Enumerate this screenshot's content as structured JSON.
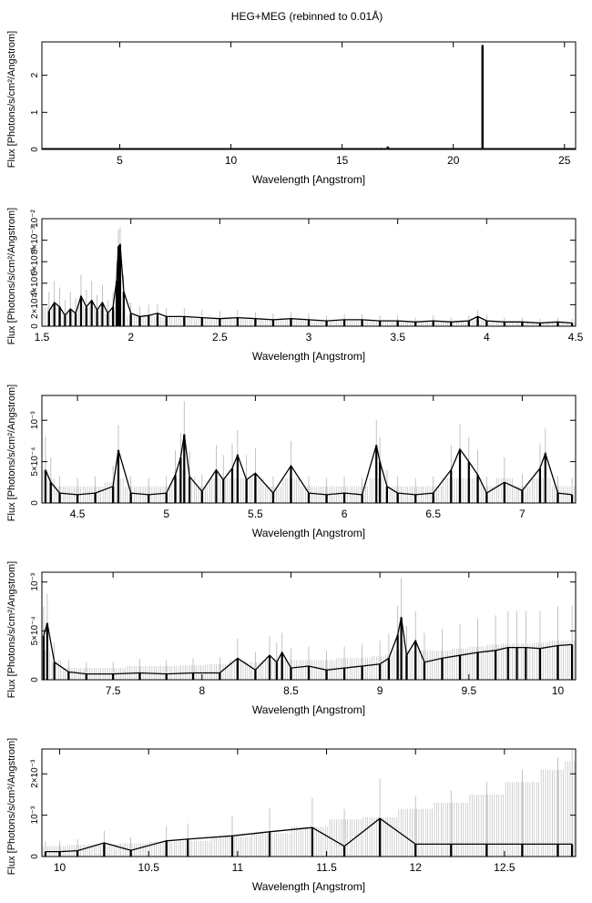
{
  "figure": {
    "title": "HEG+MEG (rebinned to 0.01Å)"
  },
  "colors": {
    "data": "#000000",
    "error_bars": "#b4b4b4",
    "axes": "#000000"
  },
  "chart_data": [
    {
      "type": "line",
      "xlabel": "Wavelength [Angstrom]",
      "ylabel": "Flux [Photons/s/cm²/Angstrom]",
      "xlim": [
        1.5,
        25.5
      ],
      "ylim": [
        0,
        2.9
      ],
      "x_ticks": [
        {
          "v": 5,
          "label": "5"
        },
        {
          "v": 10,
          "label": "10"
        },
        {
          "v": 15,
          "label": "15"
        },
        {
          "v": 20,
          "label": "20"
        },
        {
          "v": 25,
          "label": "25"
        }
      ],
      "y_ticks": [
        {
          "v": 0,
          "label": "0"
        },
        {
          "v": 1,
          "label": "1"
        },
        {
          "v": 2,
          "label": "2"
        }
      ],
      "baseline": 0.012,
      "series": [
        {
          "x": [
            16.78,
            16.82,
            17.05,
            17.08,
            21.31,
            21.32
          ],
          "y": [
            0.04,
            0.03,
            0.08,
            0.06,
            2.82,
            2.8
          ],
          "err": [
            0.01,
            0.01,
            0.01,
            0.01,
            0.02,
            0.02
          ]
        }
      ]
    },
    {
      "type": "line",
      "xlabel": "Wavelength [Angstrom]",
      "ylabel": "Flux [Photons/s/cm²/Angstrom]",
      "xlim": [
        1.5,
        4.5
      ],
      "ylim": [
        0,
        0.01
      ],
      "x_ticks": [
        {
          "v": 1.5,
          "label": "1.5"
        },
        {
          "v": 2,
          "label": "2"
        },
        {
          "v": 2.5,
          "label": "2.5"
        },
        {
          "v": 3,
          "label": "3"
        },
        {
          "v": 3.5,
          "label": "3.5"
        },
        {
          "v": 4,
          "label": "4"
        },
        {
          "v": 4.5,
          "label": "4.5"
        }
      ],
      "y_ticks": [
        {
          "v": 0,
          "label": "0"
        },
        {
          "v": 0.002,
          "label": "2×10⁻³"
        },
        {
          "v": 0.004,
          "label": "4×10⁻³"
        },
        {
          "v": 0.006,
          "label": "6×10⁻³"
        },
        {
          "v": 0.008,
          "label": "8×10⁻³"
        },
        {
          "v": 0.01,
          "label": "10⁻²"
        }
      ],
      "series": [
        {
          "x": [
            1.54,
            1.57,
            1.6,
            1.63,
            1.66,
            1.69,
            1.72,
            1.75,
            1.78,
            1.81,
            1.84,
            1.87,
            1.9,
            1.92,
            1.93,
            1.94,
            1.96,
            2.0,
            2.05,
            2.1,
            2.15,
            2.2,
            2.3,
            2.4,
            2.5,
            2.6,
            2.7,
            2.8,
            2.9,
            3.0,
            3.1,
            3.2,
            3.3,
            3.4,
            3.5,
            3.6,
            3.7,
            3.8,
            3.9,
            3.95,
            4.0,
            4.1,
            4.2,
            4.3,
            4.4,
            4.48
          ],
          "y": [
            0.0014,
            0.0022,
            0.0018,
            0.001,
            0.0016,
            0.0012,
            0.0028,
            0.0018,
            0.0024,
            0.0015,
            0.0022,
            0.0012,
            0.0018,
            0.0042,
            0.0074,
            0.0076,
            0.0032,
            0.0012,
            0.0009,
            0.001,
            0.0012,
            0.0009,
            0.0009,
            0.0008,
            0.0007,
            0.0008,
            0.0007,
            0.0006,
            0.0007,
            0.0006,
            0.0005,
            0.0006,
            0.0006,
            0.0005,
            0.0005,
            0.0004,
            0.0005,
            0.0004,
            0.0005,
            0.0009,
            0.0005,
            0.0004,
            0.0004,
            0.0003,
            0.0004,
            0.0003
          ],
          "err": [
            0.0018,
            0.002,
            0.0018,
            0.0014,
            0.0016,
            0.0014,
            0.002,
            0.0016,
            0.0018,
            0.0014,
            0.0016,
            0.0012,
            0.0014,
            0.0018,
            0.0016,
            0.0016,
            0.0016,
            0.001,
            0.0009,
            0.001,
            0.0009,
            0.0008,
            0.0008,
            0.0007,
            0.0007,
            0.0007,
            0.0006,
            0.0006,
            0.0006,
            0.0006,
            0.0005,
            0.0005,
            0.0005,
            0.0005,
            0.0005,
            0.0004,
            0.0005,
            0.0004,
            0.0005,
            0.0006,
            0.0005,
            0.0004,
            0.0004,
            0.0004,
            0.0004,
            0.0004
          ]
        }
      ]
    },
    {
      "type": "line",
      "xlabel": "Wavelength [Angstrom]",
      "ylabel": "Flux [Photons/s/cm²/Angstrom]",
      "xlim": [
        4.3,
        7.3
      ],
      "ylim": [
        0,
        0.0013
      ],
      "x_ticks": [
        {
          "v": 4.5,
          "label": "4.5"
        },
        {
          "v": 5,
          "label": "5"
        },
        {
          "v": 5.5,
          "label": "5.5"
        },
        {
          "v": 6,
          "label": "6"
        },
        {
          "v": 6.5,
          "label": "6.5"
        },
        {
          "v": 7,
          "label": "7"
        }
      ],
      "y_ticks": [
        {
          "v": 0,
          "label": "0"
        },
        {
          "v": 0.0005,
          "label": "5×10⁻⁴"
        },
        {
          "v": 0.001,
          "label": "10⁻³"
        }
      ],
      "series": [
        {
          "x": [
            4.32,
            4.35,
            4.4,
            4.5,
            4.6,
            4.7,
            4.73,
            4.8,
            4.9,
            5.0,
            5.05,
            5.08,
            5.1,
            5.13,
            5.2,
            5.28,
            5.32,
            5.37,
            5.4,
            5.45,
            5.5,
            5.6,
            5.7,
            5.8,
            5.9,
            6.0,
            6.1,
            6.18,
            6.2,
            6.24,
            6.3,
            6.4,
            6.5,
            6.6,
            6.65,
            6.7,
            6.75,
            6.8,
            6.9,
            7.0,
            7.1,
            7.13,
            7.2,
            7.28
          ],
          "y": [
            0.0004,
            0.00025,
            0.00012,
            0.0001,
            0.00012,
            0.0002,
            0.00064,
            0.00012,
            0.0001,
            0.00012,
            0.00034,
            0.00055,
            0.00083,
            0.00032,
            0.00014,
            0.0004,
            0.00028,
            0.00042,
            0.00058,
            0.00028,
            0.00036,
            0.00012,
            0.00045,
            0.00012,
            0.0001,
            0.00012,
            0.0001,
            0.0007,
            0.0005,
            0.0002,
            0.00012,
            0.0001,
            0.00012,
            0.0004,
            0.00065,
            0.0005,
            0.00034,
            0.00012,
            0.00025,
            0.00015,
            0.00042,
            0.0006,
            0.00012,
            0.0001
          ],
          "err": [
            0.0004,
            0.0003,
            0.0002,
            0.0002,
            0.0002,
            0.00025,
            0.0003,
            0.0002,
            0.0002,
            0.0002,
            0.0003,
            0.0003,
            0.0004,
            0.0003,
            0.0002,
            0.0003,
            0.0003,
            0.0003,
            0.0003,
            0.0003,
            0.0003,
            0.0002,
            0.0003,
            0.0002,
            0.0002,
            0.0002,
            0.0002,
            0.0003,
            0.0003,
            0.0002,
            0.0002,
            0.0002,
            0.0002,
            0.0003,
            0.0003,
            0.0003,
            0.0003,
            0.0002,
            0.0003,
            0.0002,
            0.0003,
            0.0003,
            0.0002,
            0.0002
          ]
        }
      ]
    },
    {
      "type": "line",
      "xlabel": "Wavelength [Angstrom]",
      "ylabel": "Flux [Photons/s/cm²/Angstrom]",
      "xlim": [
        7.1,
        10.1
      ],
      "ylim": [
        0,
        0.0011
      ],
      "x_ticks": [
        {
          "v": 7.5,
          "label": "7.5"
        },
        {
          "v": 8,
          "label": "8"
        },
        {
          "v": 8.5,
          "label": "8.5"
        },
        {
          "v": 9,
          "label": "9"
        },
        {
          "v": 9.5,
          "label": "9.5"
        },
        {
          "v": 10,
          "label": "10"
        }
      ],
      "y_ticks": [
        {
          "v": 0,
          "label": "0"
        },
        {
          "v": 0.0005,
          "label": "5×10⁻⁴"
        },
        {
          "v": 0.001,
          "label": "10⁻³"
        }
      ],
      "series": [
        {
          "x": [
            7.11,
            7.13,
            7.17,
            7.25,
            7.35,
            7.5,
            7.65,
            7.8,
            7.95,
            8.1,
            8.2,
            8.3,
            8.38,
            8.42,
            8.45,
            8.5,
            8.6,
            8.7,
            8.8,
            8.9,
            9.0,
            9.05,
            9.1,
            9.12,
            9.15,
            9.2,
            9.25,
            9.35,
            9.45,
            9.55,
            9.65,
            9.72,
            9.77,
            9.82,
            9.9,
            10.0,
            10.08
          ],
          "y": [
            0.00045,
            0.00058,
            0.00018,
            8e-05,
            6e-05,
            6e-05,
            7e-05,
            6e-05,
            7e-05,
            7e-05,
            0.00022,
            0.0001,
            0.00025,
            0.00018,
            0.00028,
            0.00012,
            0.00014,
            0.0001,
            0.00012,
            0.00014,
            0.00016,
            0.00022,
            0.00046,
            0.00064,
            0.00025,
            0.0004,
            0.00018,
            0.00022,
            0.00025,
            0.00028,
            0.0003,
            0.00033,
            0.00033,
            0.00033,
            0.00032,
            0.00035,
            0.00036
          ],
          "err": [
            0.0003,
            0.0003,
            0.0002,
            0.00012,
            0.00012,
            0.00012,
            0.00014,
            0.00014,
            0.00015,
            0.00016,
            0.0002,
            0.00018,
            0.0002,
            0.0002,
            0.0002,
            0.0002,
            0.0002,
            0.0002,
            0.00022,
            0.00022,
            0.00024,
            0.00025,
            0.0003,
            0.0004,
            0.0003,
            0.0003,
            0.0003,
            0.0003,
            0.00032,
            0.00034,
            0.00036,
            0.00037,
            0.00037,
            0.00037,
            0.00038,
            0.0004,
            0.0004
          ]
        }
      ]
    },
    {
      "type": "line",
      "xlabel": "Wavelength [Angstrom]",
      "ylabel": "Flux [Photons/s/cm²/Angstrom]",
      "xlim": [
        9.9,
        12.9
      ],
      "ylim": [
        0,
        0.0026
      ],
      "x_ticks": [
        {
          "v": 10,
          "label": "10"
        },
        {
          "v": 10.5,
          "label": "10.5"
        },
        {
          "v": 11,
          "label": "11"
        },
        {
          "v": 11.5,
          "label": "11.5"
        },
        {
          "v": 12,
          "label": "12"
        },
        {
          "v": 12.5,
          "label": "12.5"
        }
      ],
      "y_ticks": [
        {
          "v": 0,
          "label": "0"
        },
        {
          "v": 0.001,
          "label": "10⁻³"
        },
        {
          "v": 0.002,
          "label": "2×10⁻³"
        }
      ],
      "series": [
        {
          "x": [
            9.92,
            10.0,
            10.1,
            10.25,
            10.4,
            10.6,
            10.72,
            10.97,
            11.18,
            11.42,
            11.6,
            11.8,
            12.0,
            12.2,
            12.4,
            12.6,
            12.8,
            12.88
          ],
          "y": [
            0.00012,
            0.00012,
            0.00014,
            0.00033,
            0.00015,
            0.00038,
            0.00042,
            0.0005,
            0.0006,
            0.0007,
            0.00025,
            0.00092,
            0.0003,
            0.0003,
            0.0003,
            0.0003,
            0.0003,
            0.0003
          ],
          "err": [
            0.00025,
            0.00026,
            0.00028,
            0.0003,
            0.00032,
            0.00036,
            0.00038,
            0.00048,
            0.00056,
            0.00072,
            0.0009,
            0.00095,
            0.00115,
            0.0013,
            0.0015,
            0.0018,
            0.0021,
            0.0023
          ]
        }
      ]
    }
  ]
}
